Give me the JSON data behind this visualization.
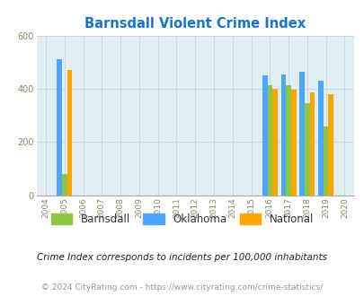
{
  "title": "Barnsdall Violent Crime Index",
  "title_color": "#1874CD",
  "years": [
    2004,
    2005,
    2006,
    2007,
    2008,
    2009,
    2010,
    2011,
    2012,
    2013,
    2014,
    2015,
    2016,
    2017,
    2018,
    2019,
    2020
  ],
  "barnsdall": [
    null,
    80,
    null,
    null,
    null,
    null,
    null,
    null,
    null,
    null,
    null,
    null,
    415,
    415,
    345,
    260,
    null
  ],
  "oklahoma": [
    null,
    510,
    null,
    null,
    null,
    null,
    null,
    null,
    null,
    null,
    null,
    null,
    450,
    455,
    465,
    430,
    null
  ],
  "national": [
    null,
    470,
    null,
    null,
    null,
    null,
    null,
    null,
    null,
    null,
    null,
    null,
    400,
    395,
    385,
    380,
    null
  ],
  "barnsdall_color": "#8DC63F",
  "oklahoma_color": "#4DA6FF",
  "national_color": "#FFA500",
  "bg_color": "#E0EEF4",
  "grid_color": "#C8D8DC",
  "ylim": [
    0,
    600
  ],
  "yticks": [
    0,
    200,
    400,
    600
  ],
  "bar_width": 0.27,
  "footnote1": "Crime Index corresponds to incidents per 100,000 inhabitants",
  "footnote2": "© 2024 CityRating.com - https://www.cityrating.com/crime-statistics/",
  "legend_labels": [
    "Barnsdall",
    "Oklahoma",
    "National"
  ]
}
